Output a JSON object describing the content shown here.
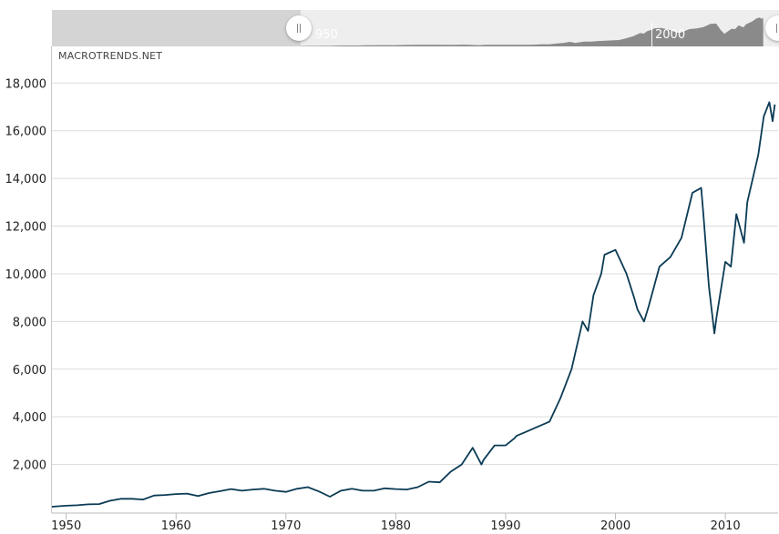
{
  "navigator": {
    "left_year_label": "950",
    "right_year_label": "2000",
    "fill_color": "#8a8a8a"
  },
  "watermark": "MACROTRENDS.NET",
  "chart_data": {
    "type": "line",
    "title": "",
    "xlabel": "",
    "ylabel": "",
    "xlim": [
      1948.7,
      2014.8
    ],
    "ylim": [
      0,
      19500
    ],
    "y_ticks": [
      2000,
      4000,
      6000,
      8000,
      10000,
      12000,
      14000,
      16000,
      18000
    ],
    "y_tick_labels": [
      "2,000",
      "4,000",
      "6,000",
      "8,000",
      "10,000",
      "12,000",
      "14,000",
      "16,000",
      "18,000"
    ],
    "x_ticks": [
      1950,
      1960,
      1970,
      1980,
      1990,
      2000,
      2010
    ],
    "x_tick_labels": [
      "1950",
      "1960",
      "1970",
      "1980",
      "1990",
      "2000",
      "2010"
    ],
    "grid": true,
    "line_color": "#0b3b55",
    "series": [
      {
        "x": [
          1948.7,
          1950,
          1951,
          1952,
          1953,
          1954,
          1955,
          1956,
          1957,
          1958,
          1959,
          1960,
          1961,
          1962,
          1963,
          1964,
          1965,
          1966,
          1967,
          1968,
          1969,
          1970,
          1971,
          1972,
          1973,
          1974,
          1975,
          1976,
          1977,
          1978,
          1979,
          1980,
          1981,
          1982,
          1983,
          1984,
          1985,
          1986,
          1987,
          1987.8,
          1988,
          1989,
          1990,
          1990.8,
          1991,
          1992,
          1993,
          1994,
          1995,
          1996,
          1997,
          1997.5,
          1998,
          1998.7,
          1999,
          2000,
          2000.5,
          2001,
          2001.7,
          2002,
          2002.6,
          2003,
          2004,
          2005,
          2006,
          2007,
          2007.8,
          2008,
          2008.5,
          2009,
          2009.2,
          2010,
          2010.5,
          2011,
          2011.7,
          2012,
          2013,
          2013.5,
          2014,
          2014.3,
          2014.5
        ],
        "values": [
          230,
          270,
          290,
          330,
          340,
          480,
          560,
          560,
          530,
          700,
          720,
          760,
          780,
          680,
          800,
          880,
          970,
          900,
          950,
          980,
          900,
          850,
          980,
          1050,
          870,
          650,
          900,
          980,
          900,
          900,
          1000,
          970,
          950,
          1050,
          1280,
          1250,
          1700,
          2000,
          2700,
          2000,
          2200,
          2800,
          2800,
          3100,
          3200,
          3400,
          3600,
          3800,
          4800,
          6000,
          8000,
          7600,
          9100,
          10000,
          10800,
          11000,
          10500,
          10000,
          9000,
          8500,
          8000,
          8600,
          10300,
          10700,
          11500,
          13400,
          13600,
          12500,
          9500,
          7500,
          8200,
          10500,
          10300,
          12500,
          11300,
          13000,
          15000,
          16600,
          17200,
          16400,
          17100
        ]
      }
    ]
  }
}
